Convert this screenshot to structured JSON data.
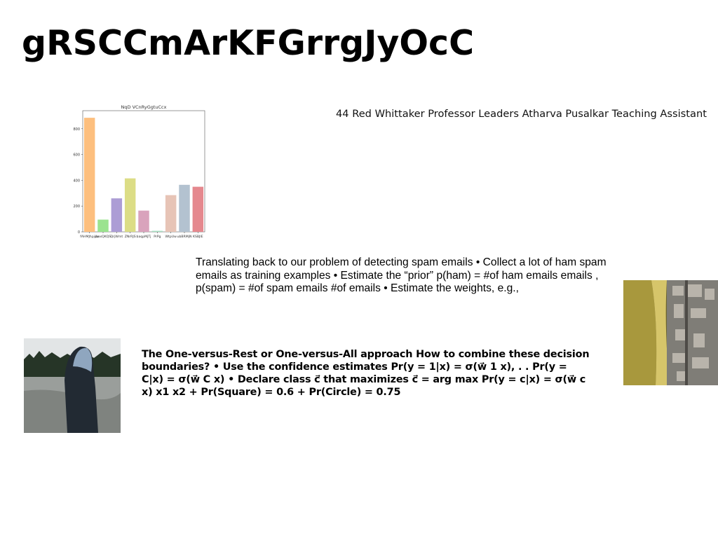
{
  "slide": {
    "title": "gRSCCmArKFGrrgJyOcC",
    "credit": "44 Red Whittaker Professor Leaders Atharva Pusalkar Teaching Assistant",
    "paragraph_1": "Translating back to our problem of detecting spam emails • Collect a lot of ham spam emails as training examples • Estimate the “prior” p(ham) = #of ham emails emails , p(spam) = #of spam emails #of emails • Estimate the weights, e.g.,",
    "paragraph_2": "The One-versus-Rest or One-versus-All approach How to combine these decision boundaries? • Use the confidence estimates Pr(y = 1|x) = σ(w⃗ 1 x), . . Pr(y = C|x) = σ(w⃗ C x) • Declare class c⃗ that maximizes c⃗ = arg max Pr(y = c|x) = σ(w⃗ c x) x1 x2 + Pr(Square) = 0.6 + Pr(Circle) = 0.75",
    "images": {
      "person_photo": "photo of person in hooded coat by a lake",
      "aerial_photo": "aerial photo of coastline and buildings"
    }
  },
  "chart_data": {
    "type": "bar",
    "title": "NqD VCnRyGgtuCcx",
    "categories": [
      "fAHMJhpjsw",
      "jbasQKQS",
      "QrjWmt",
      "ZNrRJS",
      "baqpMjTj",
      "PrPg",
      "WtpUw",
      "ubBRMjN",
      "KSBJIE"
    ],
    "values": [
      885,
      95,
      260,
      415,
      165,
      8,
      285,
      365,
      350
    ],
    "colors": [
      "#fdbf7e",
      "#9be38f",
      "#ac9dd5",
      "#dcdd86",
      "#d9a3bc",
      "#a6dec0",
      "#e7c4b6",
      "#b3c2d0",
      "#e5888e"
    ],
    "yticks": [
      0,
      200,
      400,
      600,
      800
    ],
    "ylim": [
      0,
      940
    ]
  }
}
